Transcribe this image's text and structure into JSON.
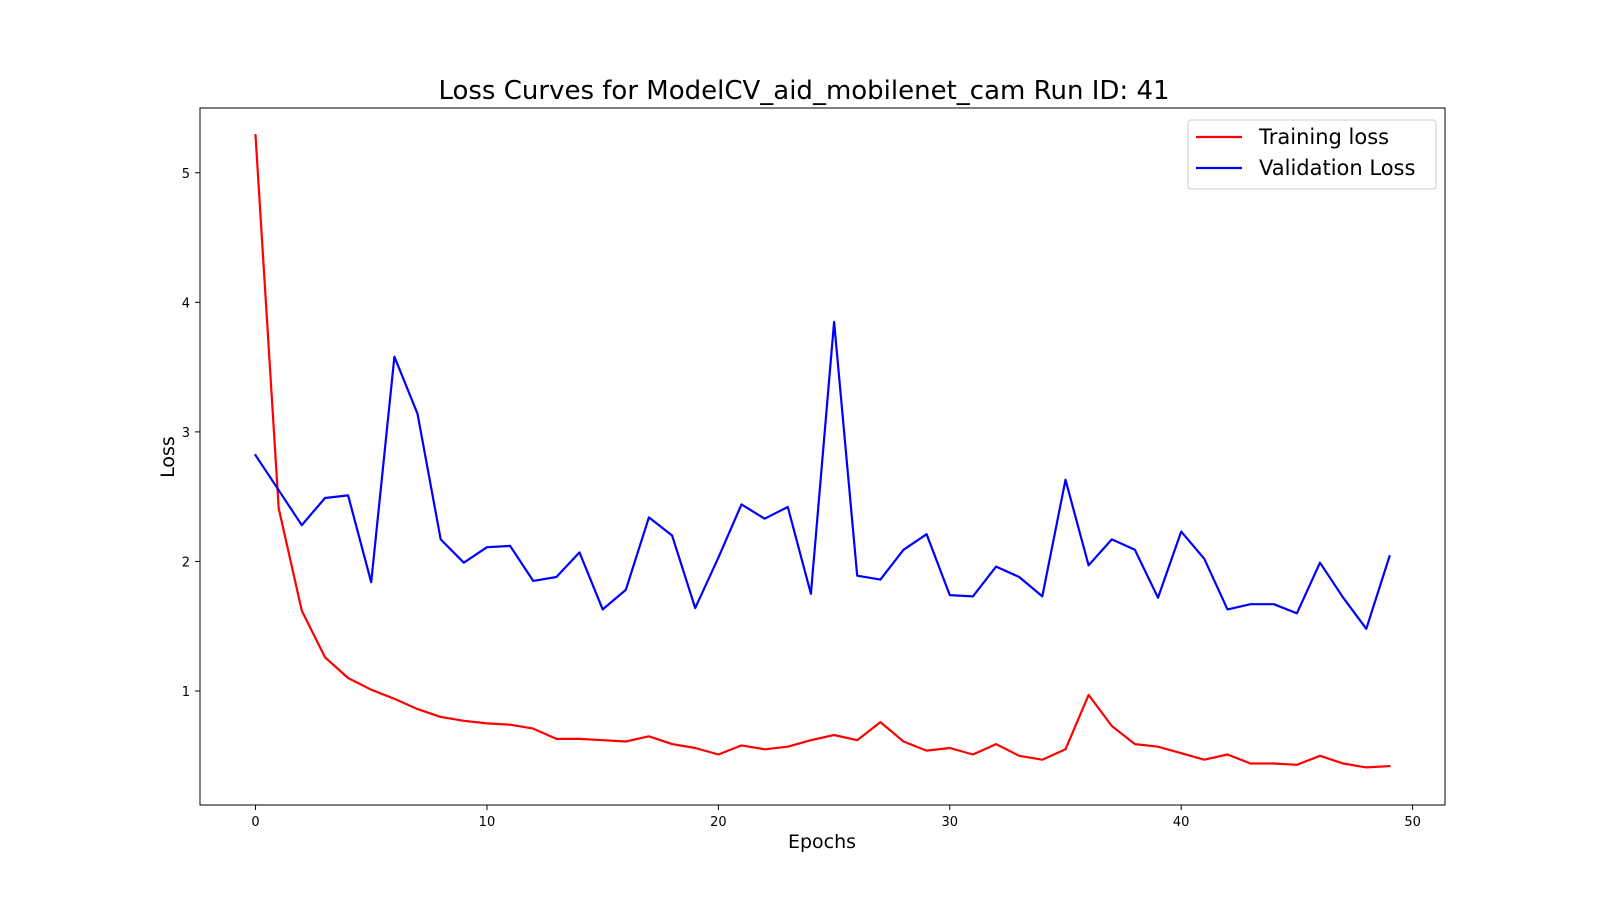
{
  "chart_data": {
    "type": "line",
    "title": "Loss Curves for ModelCV_aid_mobilenet_cam Run ID: 41",
    "xlabel": "Epochs",
    "ylabel": "Loss",
    "xlim": [
      -2.4,
      51.4
    ],
    "ylim": [
      0.12,
      5.5
    ],
    "xticks": [
      0,
      10,
      20,
      30,
      40,
      50
    ],
    "yticks": [
      1,
      2,
      3,
      4,
      5
    ],
    "grid": false,
    "legend_position": "top-right",
    "x": [
      0,
      1,
      2,
      3,
      4,
      5,
      6,
      7,
      8,
      9,
      10,
      11,
      12,
      13,
      14,
      15,
      16,
      17,
      18,
      19,
      20,
      21,
      22,
      23,
      24,
      25,
      26,
      27,
      28,
      29,
      30,
      31,
      32,
      33,
      34,
      35,
      36,
      37,
      38,
      39,
      40,
      41,
      42,
      43,
      44,
      45,
      46,
      47,
      48,
      49
    ],
    "series": [
      {
        "name": "Training loss",
        "color": "#ff0000",
        "values": [
          5.29,
          2.41,
          1.62,
          1.26,
          1.1,
          1.01,
          0.94,
          0.86,
          0.8,
          0.77,
          0.75,
          0.74,
          0.71,
          0.63,
          0.63,
          0.62,
          0.61,
          0.65,
          0.59,
          0.56,
          0.51,
          0.58,
          0.55,
          0.57,
          0.62,
          0.66,
          0.62,
          0.76,
          0.61,
          0.54,
          0.56,
          0.51,
          0.59,
          0.5,
          0.47,
          0.55,
          0.97,
          0.73,
          0.59,
          0.57,
          0.52,
          0.47,
          0.51,
          0.44,
          0.44,
          0.43,
          0.5,
          0.44,
          0.41,
          0.42
        ]
      },
      {
        "name": "Validation Loss",
        "color": "#0000ff",
        "values": [
          2.82,
          2.55,
          2.28,
          2.49,
          2.51,
          1.84,
          3.58,
          3.14,
          2.17,
          1.99,
          2.11,
          2.12,
          1.85,
          1.88,
          2.07,
          1.63,
          1.78,
          2.34,
          2.2,
          1.64,
          2.03,
          2.44,
          2.33,
          2.42,
          1.75,
          3.85,
          1.89,
          1.86,
          2.09,
          2.21,
          1.74,
          1.73,
          1.96,
          1.88,
          1.73,
          2.63,
          1.97,
          2.17,
          2.09,
          1.72,
          2.23,
          2.02,
          1.63,
          1.67,
          1.67,
          1.6,
          1.99,
          1.72,
          1.48,
          2.04
        ]
      }
    ]
  }
}
